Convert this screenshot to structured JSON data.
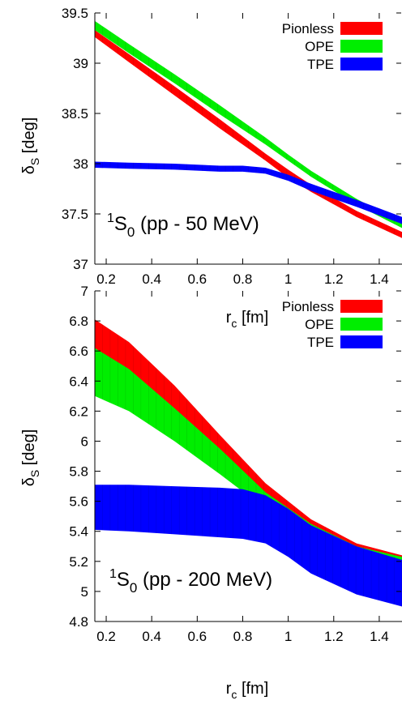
{
  "chart_data": [
    {
      "type": "area",
      "xlabel": "r",
      "xlabel_sub": "c",
      "xlabel_unit": " [fm]",
      "ylabel": "δ",
      "ylabel_sub": "S",
      "ylabel_unit": " [deg]",
      "xlim": [
        0.15,
        1.5
      ],
      "ylim": [
        37,
        39.5
      ],
      "xticks": [
        0.2,
        0.4,
        0.6,
        0.8,
        1,
        1.2,
        1.4
      ],
      "xtick_labels": [
        "0.2",
        "0.4",
        "0.6",
        "0.8",
        "1",
        "1.2",
        "1.4"
      ],
      "yticks": [
        37,
        37.5,
        38,
        38.5,
        39,
        39.5
      ],
      "ytick_labels": [
        "37",
        "37.5",
        "38",
        "38.5",
        "39",
        "39.5"
      ],
      "annotation": {
        "sup": "1",
        "main": "S",
        "sub": "0",
        "rest": " (pp - 50 MeV)"
      },
      "legend_position": "top-right",
      "series": [
        {
          "name": "Pionless",
          "color": "#ff0000",
          "x": [
            0.15,
            0.3,
            0.5,
            0.7,
            0.9,
            1.0,
            1.1,
            1.3,
            1.5
          ],
          "lower": [
            39.26,
            39.01,
            38.68,
            38.35,
            38.03,
            37.86,
            37.72,
            37.47,
            37.26
          ],
          "upper": [
            39.33,
            39.09,
            38.77,
            38.44,
            38.1,
            37.94,
            37.79,
            37.53,
            37.32
          ]
        },
        {
          "name": "OPE",
          "color": "#00ee00",
          "x": [
            0.15,
            0.3,
            0.5,
            0.7,
            0.9,
            1.0,
            1.1,
            1.3,
            1.5
          ],
          "lower": [
            39.33,
            39.1,
            38.8,
            38.49,
            38.19,
            38.03,
            37.87,
            37.59,
            37.36
          ],
          "upper": [
            39.42,
            39.19,
            38.89,
            38.58,
            38.26,
            38.09,
            37.93,
            37.65,
            37.41
          ]
        },
        {
          "name": "TPE",
          "color": "#0000ff",
          "x": [
            0.15,
            0.3,
            0.5,
            0.7,
            0.8,
            0.9,
            1.0,
            1.1,
            1.3,
            1.5
          ],
          "lower": [
            37.96,
            37.95,
            37.94,
            37.92,
            37.92,
            37.9,
            37.83,
            37.73,
            37.57,
            37.4
          ],
          "upper": [
            38.02,
            38.01,
            38.0,
            37.98,
            37.98,
            37.96,
            37.89,
            37.8,
            37.64,
            37.47
          ]
        }
      ]
    },
    {
      "type": "area",
      "xlabel": "r",
      "xlabel_sub": "c",
      "xlabel_unit": " [fm]",
      "ylabel": "δ",
      "ylabel_sub": "S",
      "ylabel_unit": " [deg]",
      "xlim": [
        0.15,
        1.5
      ],
      "ylim": [
        4.8,
        7
      ],
      "xticks": [
        0.2,
        0.4,
        0.6,
        0.8,
        1,
        1.2,
        1.4
      ],
      "xtick_labels": [
        "0.2",
        "0.4",
        "0.6",
        "0.8",
        "1",
        "1.2",
        "1.4"
      ],
      "yticks": [
        4.8,
        5,
        5.2,
        5.4,
        5.6,
        5.8,
        6,
        6.2,
        6.4,
        6.6,
        6.8,
        7
      ],
      "ytick_labels": [
        "4.8",
        "5",
        "5.2",
        "5.4",
        "5.6",
        "5.8",
        "6",
        "6.2",
        "6.4",
        "6.6",
        "6.8",
        "7"
      ],
      "annotation": {
        "sup": "1",
        "main": "S",
        "sub": "0",
        "rest": " (pp - 200 MeV)"
      },
      "legend_position": "top-right",
      "series": [
        {
          "name": "Pionless",
          "color": "#ff0000",
          "x": [
            0.15,
            0.3,
            0.5,
            0.7,
            0.9,
            1.1,
            1.3,
            1.5
          ],
          "lower": [
            6.43,
            6.33,
            6.08,
            5.81,
            5.55,
            5.37,
            5.25,
            5.2
          ],
          "upper": [
            6.81,
            6.66,
            6.37,
            6.04,
            5.72,
            5.48,
            5.32,
            5.24
          ]
        },
        {
          "name": "OPE",
          "color": "#00ee00",
          "x": [
            0.15,
            0.3,
            0.5,
            0.7,
            0.9,
            1.1,
            1.3,
            1.5
          ],
          "lower": [
            6.3,
            6.2,
            6.0,
            5.78,
            5.55,
            5.38,
            5.26,
            5.2
          ],
          "upper": [
            6.62,
            6.48,
            6.22,
            5.95,
            5.66,
            5.45,
            5.3,
            5.23
          ]
        },
        {
          "name": "TPE",
          "color": "#0000ff",
          "x": [
            0.15,
            0.3,
            0.5,
            0.7,
            0.8,
            0.9,
            1.0,
            1.1,
            1.3,
            1.5
          ],
          "lower": [
            5.41,
            5.4,
            5.38,
            5.36,
            5.35,
            5.32,
            5.23,
            5.12,
            4.98,
            4.9
          ],
          "upper": [
            5.71,
            5.71,
            5.7,
            5.69,
            5.68,
            5.64,
            5.55,
            5.44,
            5.3,
            5.21
          ]
        }
      ]
    }
  ]
}
